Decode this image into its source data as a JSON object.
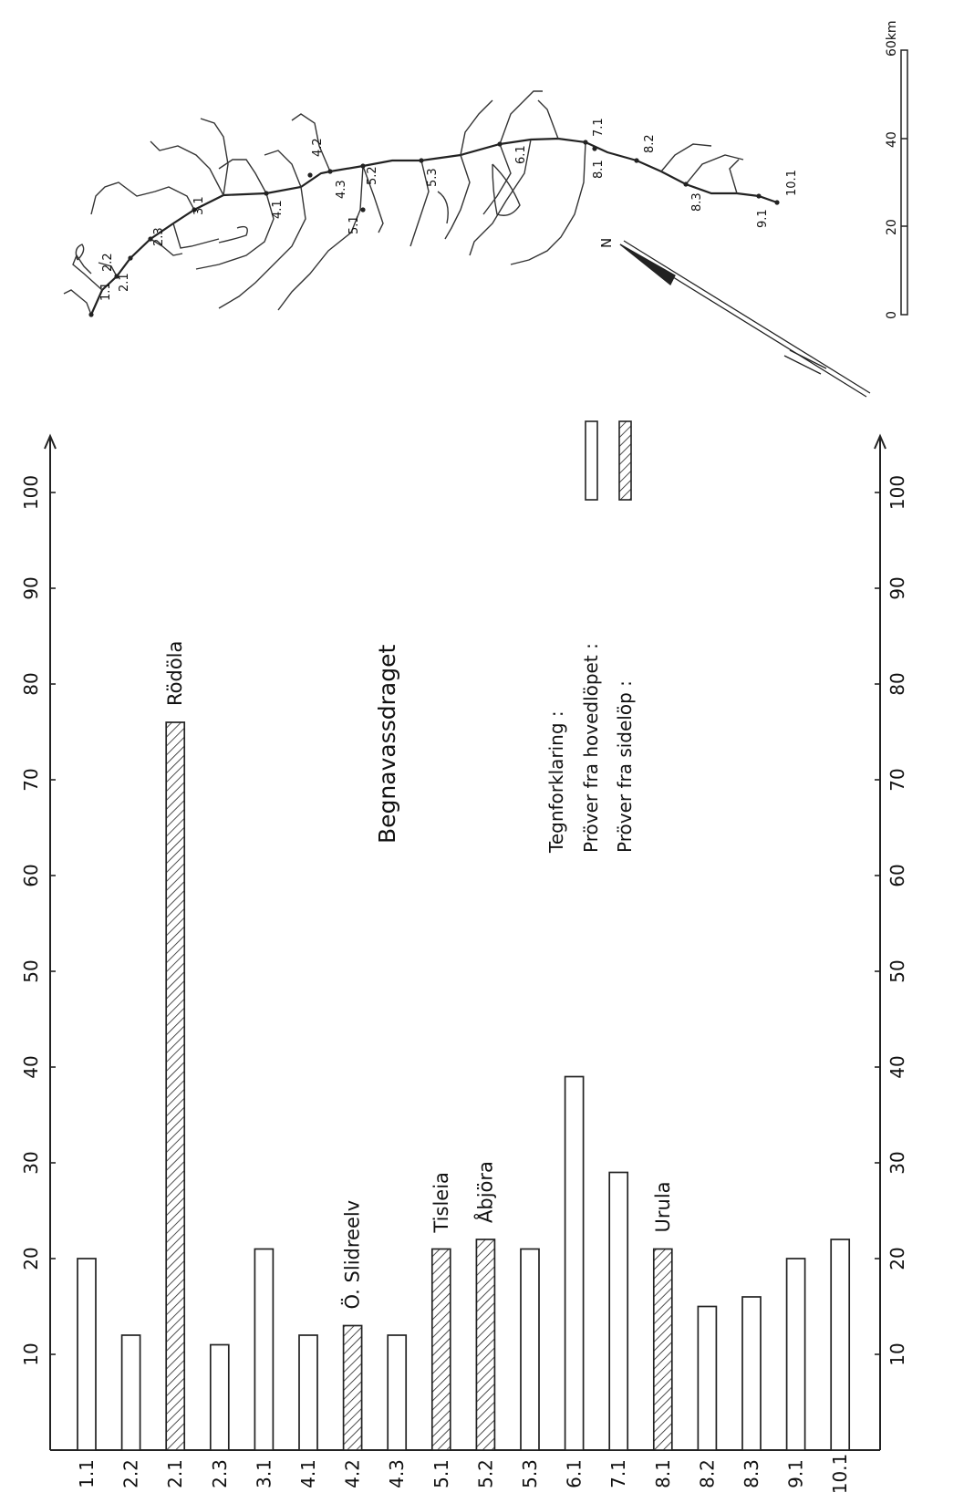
{
  "chart_data": {
    "type": "bar",
    "orientation": "horizontal (figure rotated 90°)",
    "title": "Begnavassdraget",
    "categories": [
      "1.1",
      "2.2",
      "2.1",
      "2.3",
      "3.1",
      "4.1",
      "4.2",
      "4.3",
      "5.1",
      "5.2",
      "5.3",
      "6.1",
      "7.1",
      "8.1",
      "8.2",
      "8.3",
      "9.1",
      "10.1"
    ],
    "values": [
      20,
      12,
      76,
      11,
      21,
      12,
      13,
      12,
      21,
      22,
      21,
      39,
      29,
      21,
      15,
      16,
      20,
      22
    ],
    "sample_type": [
      "main",
      "main",
      "side",
      "main",
      "main",
      "main",
      "side",
      "main",
      "side",
      "side",
      "main",
      "main",
      "main",
      "side",
      "main",
      "main",
      "main",
      "main"
    ],
    "annotations": [
      {
        "category": "2.1",
        "text": "Rödöla"
      },
      {
        "category": "4.2",
        "text": "Ö. Slidreelv"
      },
      {
        "category": "5.1",
        "text": "Tisleia"
      },
      {
        "category": "5.2",
        "text": "Åbjöra"
      },
      {
        "category": "8.1",
        "text": "Urula"
      }
    ],
    "value_axis": {
      "range": [
        0,
        100
      ],
      "ticks": [
        "10",
        "20",
        "30",
        "40",
        "50",
        "60",
        "70",
        "80",
        "90",
        "100"
      ]
    },
    "legend": {
      "title": "Tegnforklaring :",
      "items": [
        {
          "label": "Pröver fra hovedlöpet :",
          "pattern": "open"
        },
        {
          "label": "Pröver fra sidelöp :",
          "pattern": "hatched"
        }
      ],
      "placement": "left of the 90–100 ticks"
    },
    "grid": false
  },
  "map": {
    "station_labels": [
      "1.1",
      "2.1",
      "2.2",
      "2.3",
      "3.1",
      "4.1",
      "4.2",
      "4.3",
      "5.1",
      "5.2",
      "5.3",
      "6.1",
      "7.1",
      "8.1",
      "8.2",
      "8.3",
      "9.1",
      "10.1"
    ],
    "north_label": "N",
    "scale_ticks": [
      "0",
      "20",
      "40",
      "60km"
    ]
  }
}
